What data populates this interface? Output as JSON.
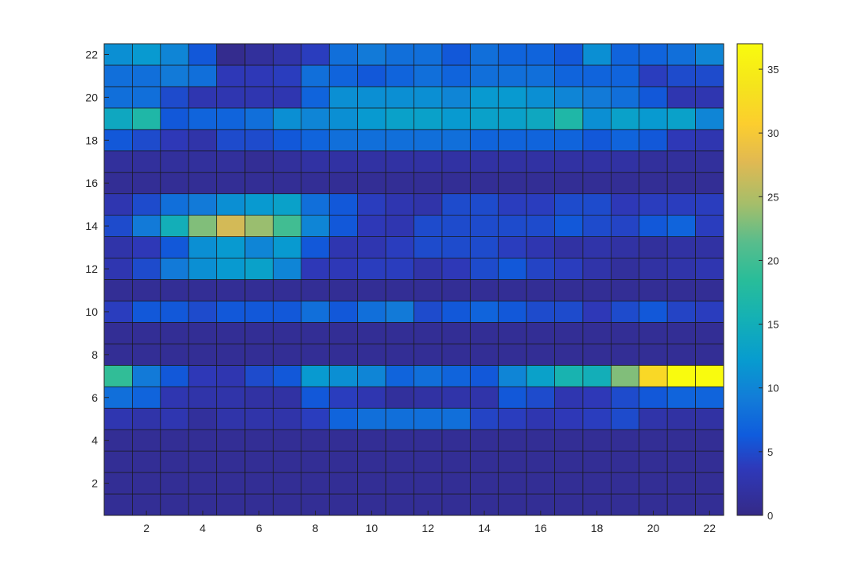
{
  "chart_data": {
    "type": "heatmap",
    "title": "",
    "xlabel": "",
    "ylabel": "",
    "x": [
      1,
      2,
      3,
      4,
      5,
      6,
      7,
      8,
      9,
      10,
      11,
      12,
      13,
      14,
      15,
      16,
      17,
      18,
      19,
      20,
      21,
      22
    ],
    "y": [
      1,
      2,
      3,
      4,
      5,
      6,
      7,
      8,
      9,
      10,
      11,
      12,
      13,
      14,
      15,
      16,
      17,
      18,
      19,
      20,
      21,
      22
    ],
    "xticks": [
      "2",
      "4",
      "6",
      "8",
      "10",
      "12",
      "14",
      "16",
      "18",
      "20",
      "22"
    ],
    "yticks": [
      "2",
      "4",
      "6",
      "8",
      "10",
      "12",
      "14",
      "16",
      "18",
      "20",
      "22"
    ],
    "colorbar": {
      "ticks": [
        "0",
        "5",
        "10",
        "15",
        "20",
        "25",
        "30",
        "35"
      ],
      "range": [
        0,
        37
      ],
      "colormap": "parula"
    },
    "values": [
      [
        1,
        1,
        1,
        1,
        1,
        1,
        1,
        1,
        1,
        1,
        1,
        1,
        1,
        1,
        1,
        1,
        1,
        1,
        1,
        1,
        1,
        1
      ],
      [
        1,
        1,
        1,
        1,
        1,
        1,
        1,
        1,
        1,
        1,
        1,
        1,
        1,
        1,
        1,
        1,
        1,
        1,
        1,
        1,
        1,
        1
      ],
      [
        1,
        1,
        1,
        1,
        1,
        1,
        1,
        1,
        1,
        1,
        1,
        1,
        1,
        1,
        1,
        1,
        1,
        1,
        1,
        1,
        1,
        1
      ],
      [
        1,
        1,
        1,
        1,
        1,
        1,
        1,
        1,
        1,
        1,
        1,
        1,
        1,
        1,
        1,
        1,
        1,
        1,
        1,
        1,
        1,
        1
      ],
      [
        3,
        2.5,
        3,
        1.5,
        2.5,
        2.5,
        2.5,
        4,
        7,
        8,
        8,
        8,
        8,
        4.5,
        4,
        3,
        3.5,
        4,
        5,
        2.5,
        2,
        2
      ],
      [
        8,
        7,
        3,
        2.5,
        2.5,
        2,
        2,
        6,
        4,
        3,
        1.5,
        2,
        2.5,
        2.5,
        6,
        5,
        3,
        3.5,
        5,
        6,
        7,
        7
      ],
      [
        19,
        9,
        6,
        3.5,
        3,
        5,
        6,
        12,
        11,
        10,
        7,
        8,
        7,
        6,
        10,
        13,
        16,
        15,
        23,
        32,
        37,
        37
      ],
      [
        1,
        1,
        1,
        1,
        1,
        1,
        1,
        1,
        1,
        1,
        1,
        1,
        1,
        1,
        1,
        1,
        1,
        1,
        1,
        1,
        1,
        1
      ],
      [
        1,
        1,
        1,
        1,
        1,
        1,
        1,
        1,
        1,
        1,
        1,
        1,
        1,
        1,
        1,
        1,
        1,
        1,
        1,
        1,
        1,
        1
      ],
      [
        4,
        6,
        6,
        5,
        6,
        6,
        6,
        8,
        6,
        8,
        9,
        5,
        6,
        7,
        6,
        5,
        5,
        3.5,
        5,
        6,
        4.5,
        4
      ],
      [
        1,
        1,
        1,
        1,
        1,
        1,
        1,
        1,
        1,
        1,
        1,
        1,
        1,
        1,
        1,
        1,
        1,
        1,
        1,
        1,
        1,
        1
      ],
      [
        3,
        5,
        9,
        11,
        12,
        13,
        10,
        3.5,
        3.5,
        4,
        4,
        2.5,
        3.5,
        5,
        6,
        4.5,
        4,
        2.5,
        1.5,
        2,
        2.5,
        3
      ],
      [
        2.5,
        3.5,
        6,
        11,
        12,
        10,
        12,
        6,
        3,
        3,
        4,
        5,
        5,
        5,
        4,
        3,
        2,
        2.5,
        2,
        1.5,
        2,
        2
      ],
      [
        5,
        9,
        15,
        23,
        27,
        24,
        20,
        10,
        6,
        3.5,
        3,
        5,
        5,
        5,
        5,
        5,
        6,
        5,
        4.5,
        6,
        7,
        4
      ],
      [
        3,
        5,
        8,
        9,
        11,
        12,
        13,
        8,
        6,
        4,
        3,
        2.5,
        5,
        5,
        4,
        4,
        5,
        5,
        3.5,
        4,
        4,
        4
      ],
      [
        1,
        1,
        1,
        1,
        1,
        1,
        1,
        1,
        1,
        1,
        1,
        1,
        1,
        1,
        1,
        1,
        1,
        1,
        1,
        1,
        1,
        1
      ],
      [
        1.5,
        1.5,
        1.5,
        1.5,
        1.5,
        1,
        1.5,
        2,
        2,
        2,
        2,
        2,
        2,
        2,
        2,
        2,
        2,
        2,
        2,
        1.5,
        1.5,
        1.5
      ],
      [
        6,
        5,
        3.5,
        2.5,
        5,
        5,
        6,
        7,
        8,
        8,
        8,
        8,
        8,
        7,
        7,
        7,
        7,
        6,
        7,
        6,
        3.5,
        3
      ],
      [
        14,
        17,
        6,
        7,
        7,
        8,
        11,
        10,
        11,
        12,
        13,
        13,
        12,
        13,
        13,
        14,
        17,
        11,
        13,
        12,
        13,
        10
      ],
      [
        8,
        8,
        5,
        3,
        3,
        3,
        3,
        7,
        11,
        11,
        11,
        11,
        10,
        12,
        12,
        11,
        10,
        9,
        8,
        6,
        3,
        3
      ],
      [
        8,
        8,
        9,
        8,
        3.5,
        3.5,
        4,
        8,
        7,
        6,
        7,
        8,
        7,
        8,
        8,
        8,
        7,
        7,
        7,
        4,
        5,
        5
      ],
      [
        11,
        12,
        10,
        6,
        0.5,
        1.5,
        2.5,
        4,
        8,
        9,
        8,
        8,
        6,
        8,
        7,
        7,
        6,
        11,
        7,
        7,
        8,
        10
      ]
    ]
  }
}
